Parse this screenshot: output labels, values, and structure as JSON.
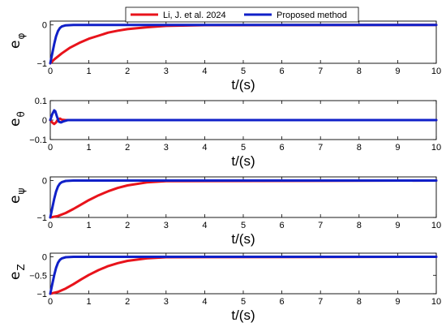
{
  "chart_data": {
    "type": "line",
    "legend": {
      "placement": "top-center",
      "entries": [
        {
          "name": "Li, J. et al. 2024",
          "color": "#e8131b"
        },
        {
          "name": "Proposed method",
          "color": "#1020c8"
        }
      ]
    },
    "shared_x": {
      "label": "t/(s)",
      "ticks": [
        "0",
        "1",
        "2",
        "3",
        "4",
        "5",
        "6",
        "7",
        "8",
        "9",
        "10"
      ],
      "xlim": [
        0,
        10
      ]
    },
    "panels": [
      {
        "ylabel_main": "e",
        "ylabel_sub": "φ",
        "ylim": [
          -1,
          0.1
        ],
        "yticks": [
          {
            "value": 0,
            "label": "0"
          },
          {
            "value": -1,
            "label": "−1"
          }
        ],
        "series": [
          {
            "name": "Li, J. et al. 2024",
            "x": [
              0,
              0.1,
              0.3,
              0.5,
              0.75,
              1.0,
              1.25,
              1.5,
              1.75,
              2.0,
              2.5,
              3.0,
              4.0,
              10
            ],
            "y": [
              -1,
              -0.9,
              -0.74,
              -0.6,
              -0.47,
              -0.36,
              -0.28,
              -0.2,
              -0.15,
              -0.11,
              -0.06,
              -0.025,
              -0.005,
              0
            ]
          },
          {
            "name": "Proposed method",
            "x": [
              0,
              0.05,
              0.1,
              0.15,
              0.2,
              0.25,
              0.3,
              0.4,
              0.6,
              1.0,
              10
            ],
            "y": [
              -1,
              -0.75,
              -0.5,
              -0.3,
              -0.16,
              -0.08,
              -0.04,
              -0.01,
              0,
              0,
              0
            ]
          }
        ]
      },
      {
        "ylabel_main": "e",
        "ylabel_sub": "θ",
        "ylim": [
          -0.1,
          0.1
        ],
        "yticks": [
          {
            "value": 0.1,
            "label": "0.1"
          },
          {
            "value": 0,
            "label": "0"
          },
          {
            "value": -0.1,
            "label": "−0.1"
          }
        ],
        "series": [
          {
            "name": "Li, J. et al. 2024",
            "x": [
              0,
              0.05,
              0.1,
              0.15,
              0.2,
              0.25,
              0.3,
              0.4,
              10
            ],
            "y": [
              0,
              -0.012,
              -0.02,
              -0.012,
              0.004,
              0.008,
              0.002,
              0,
              0
            ]
          },
          {
            "name": "Proposed method",
            "x": [
              0,
              0.05,
              0.1,
              0.13,
              0.17,
              0.22,
              0.28,
              0.35,
              0.45,
              0.6,
              10
            ],
            "y": [
              0,
              0.03,
              0.05,
              0.045,
              0.02,
              -0.008,
              -0.012,
              -0.006,
              0,
              0,
              0
            ]
          }
        ]
      },
      {
        "ylabel_main": "e",
        "ylabel_sub": "ψ",
        "ylim": [
          -1,
          0.1
        ],
        "yticks": [
          {
            "value": 0,
            "label": "0"
          },
          {
            "value": -1,
            "label": "−1"
          }
        ],
        "series": [
          {
            "name": "Li, J. et al. 2024",
            "x": [
              0,
              0.2,
              0.4,
              0.6,
              0.8,
              1.0,
              1.25,
              1.5,
              1.75,
              2.0,
              2.5,
              3.0,
              10
            ],
            "y": [
              -1,
              -0.96,
              -0.88,
              -0.77,
              -0.65,
              -0.53,
              -0.4,
              -0.29,
              -0.2,
              -0.13,
              -0.05,
              -0.015,
              0
            ]
          },
          {
            "name": "Proposed method",
            "x": [
              0,
              0.05,
              0.1,
              0.15,
              0.2,
              0.25,
              0.3,
              0.4,
              0.6,
              1.0,
              10
            ],
            "y": [
              -1,
              -0.75,
              -0.5,
              -0.3,
              -0.16,
              -0.08,
              -0.04,
              -0.01,
              0,
              0,
              0
            ]
          }
        ]
      },
      {
        "ylabel_main": "e",
        "ylabel_sub": "Z",
        "ylim": [
          -1,
          0.1
        ],
        "yticks": [
          {
            "value": 0,
            "label": "0"
          },
          {
            "value": -0.5,
            "label": "−0.5"
          },
          {
            "value": -1,
            "label": "−1"
          }
        ],
        "series": [
          {
            "name": "Li, J. et al. 2024",
            "x": [
              0,
              0.2,
              0.4,
              0.6,
              0.8,
              1.0,
              1.25,
              1.5,
              1.75,
              2.0,
              2.5,
              3.0,
              10
            ],
            "y": [
              -1,
              -0.95,
              -0.86,
              -0.74,
              -0.61,
              -0.49,
              -0.36,
              -0.25,
              -0.17,
              -0.11,
              -0.04,
              -0.01,
              0
            ]
          },
          {
            "name": "Proposed method",
            "x": [
              0,
              0.05,
              0.1,
              0.15,
              0.2,
              0.25,
              0.3,
              0.4,
              0.6,
              1.0,
              10
            ],
            "y": [
              -1,
              -0.75,
              -0.5,
              -0.3,
              -0.16,
              -0.08,
              -0.04,
              -0.01,
              0,
              0,
              0
            ]
          }
        ]
      }
    ]
  }
}
